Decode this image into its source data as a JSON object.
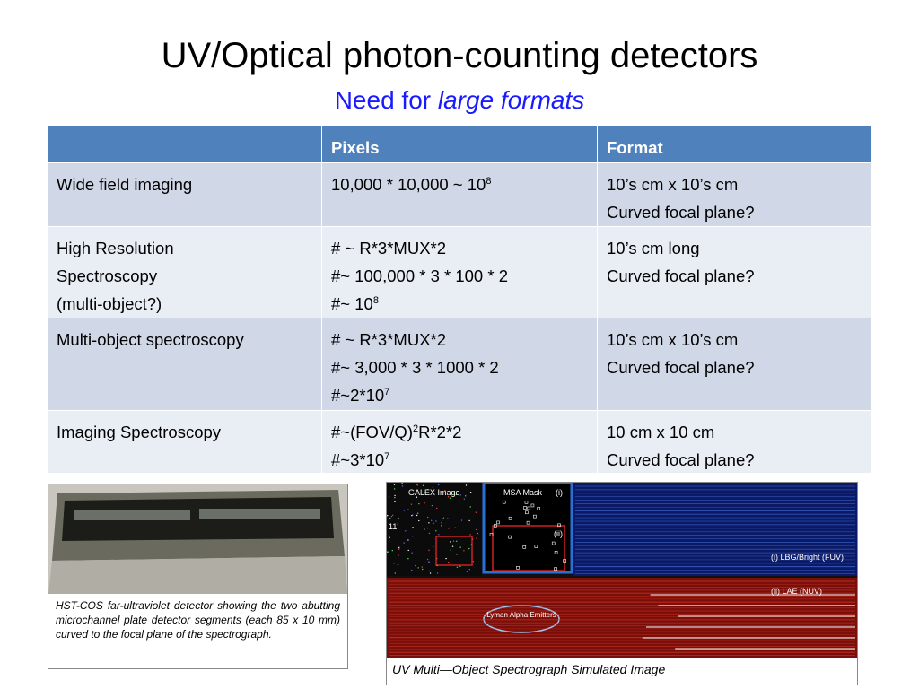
{
  "header": {
    "title": "UV/Optical photon-counting detectors",
    "subtitle_plain": "Need for ",
    "subtitle_italic": "large formats"
  },
  "table": {
    "columns": [
      "Pixels",
      "Format"
    ],
    "rows": [
      {
        "label": [
          {
            "text": "Wide field imaging"
          }
        ],
        "pixels": [
          {
            "text": "10,000 * 10,000 ~ 10",
            "sup": "8"
          }
        ],
        "format": [
          {
            "text": "10’s cm x 10’s cm"
          },
          {
            "text": "Curved focal plane?"
          }
        ]
      },
      {
        "label": [
          {
            "text": "High Resolution"
          },
          {
            "text": "Spectroscopy"
          },
          {
            "text": "(multi-object?)"
          }
        ],
        "pixels": [
          {
            "text": "# ~ R*3*MUX*2"
          },
          {
            "text": "#~ 100,000 * 3 * 100 * 2"
          },
          {
            "text": "#~ 10",
            "sup": "8"
          }
        ],
        "format": [
          {
            "text": "10’s cm long"
          },
          {
            "text": "Curved focal plane?"
          }
        ]
      },
      {
        "label": [
          {
            "text": "Multi-object spectroscopy"
          }
        ],
        "pixels": [
          {
            "text": "# ~ R*3*MUX*2"
          },
          {
            "text": "#~ 3,000 * 3 * 1000 * 2"
          },
          {
            "text": "#~2*10",
            "sup": "7"
          }
        ],
        "format": [
          {
            "text": "10’s cm x 10’s cm"
          },
          {
            "text": "Curved focal plane?"
          }
        ]
      },
      {
        "label": [
          {
            "text": "Imaging Spectroscopy"
          }
        ],
        "pixels": [
          {
            "text": "#~(FOV/Q)",
            "sup": "2",
            "after": "R*2*2"
          },
          {
            "text": "#~3*10",
            "sup": "7"
          }
        ],
        "format": [
          {
            "text": "10 cm x 10 cm"
          },
          {
            "text": "Curved focal plane?"
          }
        ]
      }
    ]
  },
  "figures": {
    "left_caption": "HST-COS far-ultraviolet detector showing the two abutting microchannel plate detector segments (each 85 x 10 mm) curved to the focal plane of the spectrograph.",
    "right_caption": "UV Multi—Object Spectrograph Simulated Image",
    "image_labels": {
      "galex": "GALEX Image",
      "msa": "MSA Mask",
      "msa_i": "(i)",
      "msa_ii": "(ii)",
      "scale": "11'",
      "fuv": "(i) LBG/Bright (FUV)",
      "nuv": "(ii) LAE (NUV)",
      "lyman": "Lyman Alpha Emitters"
    }
  }
}
